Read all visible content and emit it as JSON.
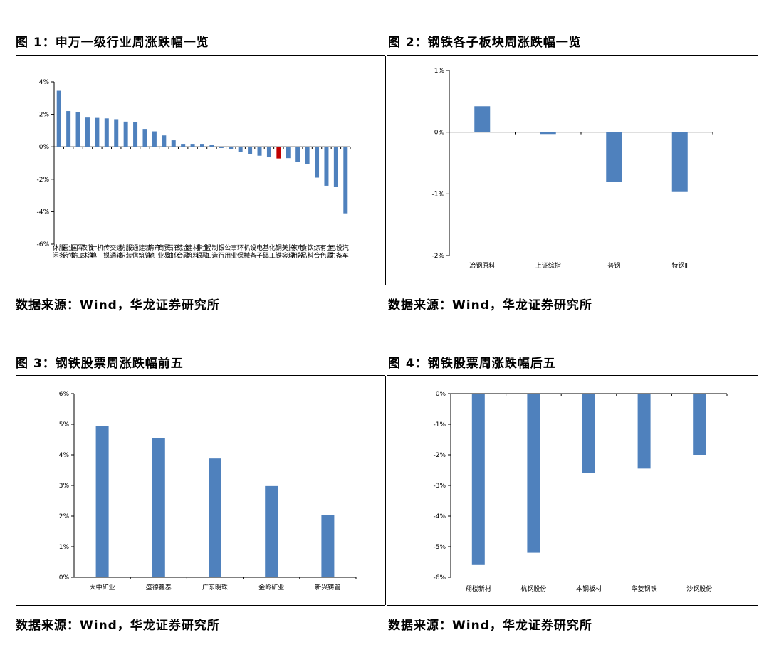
{
  "titles": {
    "fig1": "图 1：申万一级行业周涨跌幅一览",
    "fig2": "图 2：钢铁各子板块周涨跌幅一览",
    "fig3": "图 3：钢铁股票周涨跌幅前五",
    "fig4": "图 4：钢铁股票周涨跌幅后五"
  },
  "sources": {
    "fig1": "数据来源：Wind，华龙证券研究所",
    "fig2": "数据来源：Wind，华龙证券研究所",
    "fig3": "数据来源：Wind，华龙证券研究所",
    "fig4": "数据来源：Wind，华龙证券研究所"
  },
  "colors": {
    "bar": "#4f81bd",
    "highlight": "#c00000"
  },
  "chart_data": [
    {
      "id": "fig1",
      "type": "bar",
      "ylim": [
        -6,
        4
      ],
      "yticks": [
        4,
        2,
        0,
        -2,
        -4,
        -6
      ],
      "tick_suffix": "%",
      "highlight_category": "钢铁",
      "categories": [
        "休闲服务",
        "医药生物",
        "国防军工",
        "农林牧渔",
        "计算机",
        "传媒",
        "交通运输",
        "纺织服装",
        "通信",
        "建筑装饰",
        "房地产",
        "商业贸易",
        "石油石化",
        "综合金融",
        "建筑材料",
        "非银金融",
        "轻工制造",
        "银行",
        "公用事业",
        "环保",
        "机械设备",
        "电子",
        "基础化工",
        "钢铁",
        "美容护理",
        "家用电器",
        "食品饮料",
        "综合",
        "有色金属",
        "电力设备",
        "汽车"
      ],
      "labels": [
        "休闲服务",
        "医药生物",
        "国防军工",
        "农林牧渔",
        "计算机",
        "传媒",
        "交通运输",
        "纺织服装",
        "通信",
        "建筑装饰",
        "房地产",
        "商业贸易",
        "石油石化",
        "综合金融",
        "建筑材料",
        "非银金融",
        "轻工制造",
        "银行",
        "公用事业",
        "环保",
        "机械设备",
        "电子",
        "基础化工",
        "钢铁",
        "美容护理",
        "家用电器",
        "食品饮料",
        "综合",
        "有色金属",
        "电力设备",
        "汽车"
      ],
      "values": [
        3.45,
        2.2,
        2.15,
        1.8,
        1.78,
        1.75,
        1.7,
        1.55,
        1.5,
        1.1,
        0.95,
        0.7,
        0.4,
        0.18,
        0.18,
        0.18,
        0.12,
        -0.08,
        -0.15,
        -0.3,
        -0.45,
        -0.55,
        -0.65,
        -0.72,
        -0.7,
        -0.95,
        -1.05,
        -1.9,
        -2.4,
        -2.45,
        -4.1
      ]
    },
    {
      "id": "fig2",
      "type": "bar",
      "ylim": [
        -2,
        1
      ],
      "yticks": [
        1,
        0,
        -1,
        -2
      ],
      "tick_suffix": "%",
      "categories": [
        "冶钢原料",
        "上证综指",
        "普钢",
        "特钢Ⅱ"
      ],
      "values": [
        0.42,
        -0.03,
        -0.8,
        -0.97
      ]
    },
    {
      "id": "fig3",
      "type": "bar",
      "ylim": [
        0,
        6
      ],
      "yticks": [
        6,
        5,
        4,
        3,
        2,
        1,
        0
      ],
      "tick_suffix": "%",
      "categories": [
        "大中矿业",
        "盛德鑫泰",
        "广东明珠",
        "金岭矿业",
        "新兴铸管"
      ],
      "values": [
        4.95,
        4.55,
        3.88,
        2.98,
        2.03
      ]
    },
    {
      "id": "fig4",
      "type": "bar",
      "ylim": [
        -6,
        0
      ],
      "yticks": [
        0,
        -1,
        -2,
        -3,
        -4,
        -5,
        -6
      ],
      "tick_suffix": "%",
      "categories": [
        "翔楼新材",
        "杭钢股份",
        "本钢板材",
        "华菱钢铁",
        "沙钢股份"
      ],
      "values": [
        -5.6,
        -5.2,
        -2.6,
        -2.45,
        -2.0
      ]
    }
  ]
}
